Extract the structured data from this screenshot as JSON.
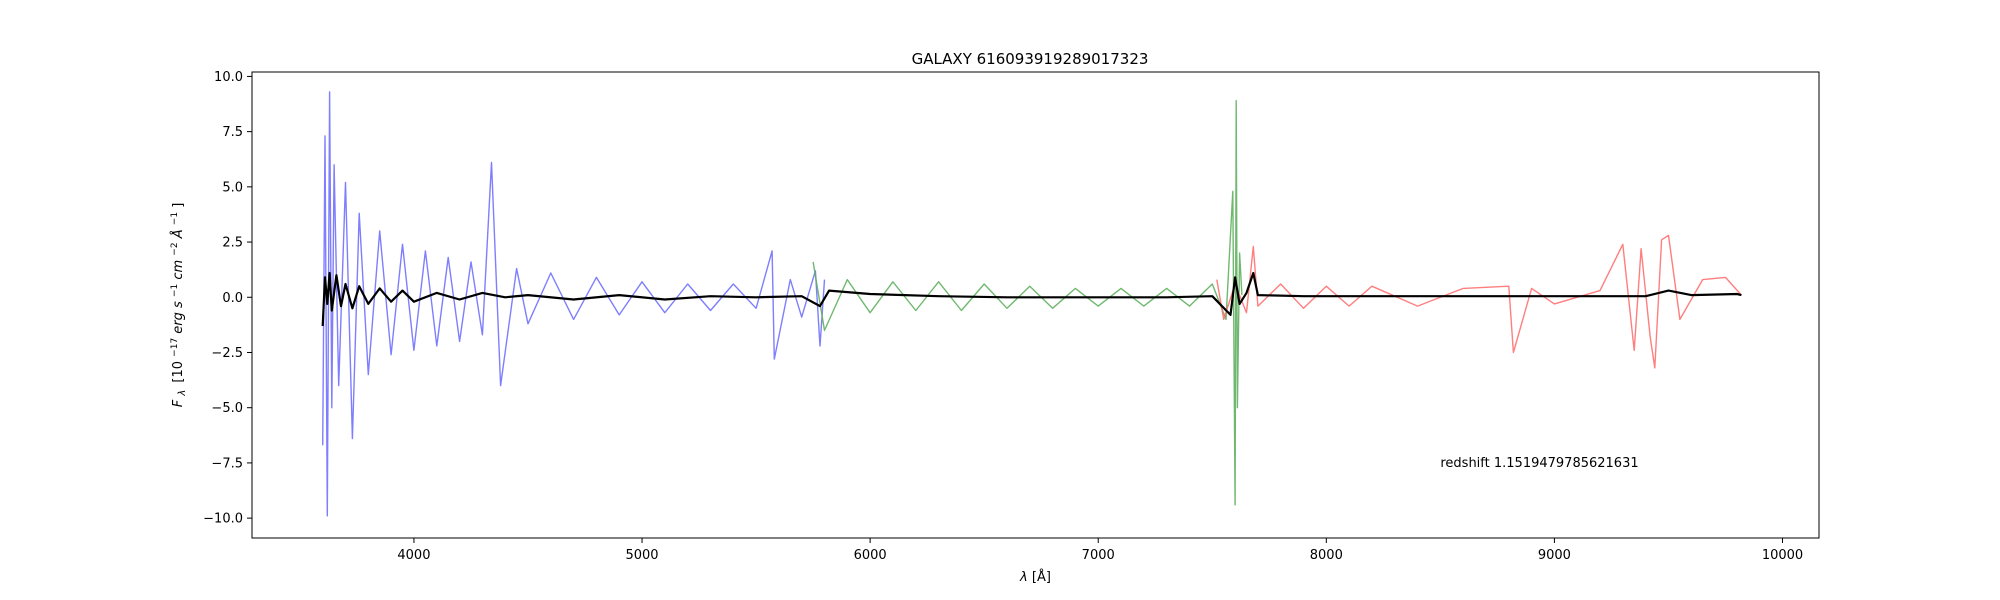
{
  "chart_data": {
    "type": "line",
    "title": "GALAXY 616093919289017323",
    "xlabel_symbol": "λ",
    "xlabel_unit": "[Å]",
    "ylabel_main": "F",
    "ylabel_sub": "λ",
    "ylabel_rest": "[10",
    "ylabel_exp1": "−17",
    "ylabel_erg": "erg s",
    "ylabel_exp2": "−1",
    "ylabel_cm": " cm",
    "ylabel_exp3": "−2",
    "ylabel_ang": " Å",
    "ylabel_exp4": "−1",
    "ylabel_close": "]",
    "xlim": [
      3290,
      10160
    ],
    "ylim": [
      -10.9,
      10.2
    ],
    "xticks": [
      4000,
      5000,
      6000,
      7000,
      8000,
      9000,
      10000
    ],
    "xtick_labels": [
      "4000",
      "5000",
      "6000",
      "7000",
      "8000",
      "9000",
      "10000"
    ],
    "yticks": [
      10.0,
      7.5,
      5.0,
      2.5,
      0.0,
      -2.5,
      -5.0,
      -7.5,
      -10.0
    ],
    "ytick_labels": [
      "10.0",
      "7.5",
      "5.0",
      "2.5",
      "0.0",
      "−2.5",
      "−5.0",
      "−7.5",
      "−10.0"
    ],
    "grid": false,
    "annotation": "redshift 1.1519479785621631",
    "series": [
      {
        "color": "#7070ff",
        "x": [
          3600,
          3610,
          3620,
          3630,
          3640,
          3650,
          3670,
          3700,
          3730,
          3760,
          3800,
          3850,
          3900,
          3950,
          4000,
          4050,
          4100,
          4150,
          4200,
          4250,
          4300,
          4340,
          4380,
          4450,
          4500,
          4600,
          4700,
          4800,
          4900,
          5000,
          5100,
          5200,
          5300,
          5400,
          5500,
          5570,
          5580,
          5650,
          5700,
          5760,
          5780,
          5800
        ],
        "y": [
          -6.7,
          7.3,
          -9.9,
          9.3,
          -5.0,
          6.0,
          -4.0,
          5.2,
          -6.4,
          3.8,
          -3.5,
          3.0,
          -2.6,
          2.4,
          -2.4,
          2.1,
          -2.2,
          1.8,
          -2.0,
          1.6,
          -1.7,
          6.1,
          -4.0,
          1.3,
          -1.2,
          1.1,
          -1.0,
          0.9,
          -0.8,
          0.7,
          -0.7,
          0.6,
          -0.6,
          0.6,
          -0.5,
          2.1,
          -2.8,
          0.8,
          -0.9,
          1.2,
          -2.2,
          0.8
        ]
      },
      {
        "color": "#60b060",
        "x": [
          5750,
          5800,
          5900,
          6000,
          6100,
          6200,
          6300,
          6400,
          6500,
          6600,
          6700,
          6800,
          6900,
          7000,
          7100,
          7200,
          7300,
          7400,
          7500,
          7560,
          7590,
          7600,
          7605,
          7610,
          7620,
          7630
        ],
        "y": [
          1.6,
          -1.5,
          0.8,
          -0.7,
          0.7,
          -0.6,
          0.7,
          -0.6,
          0.6,
          -0.5,
          0.5,
          -0.5,
          0.4,
          -0.4,
          0.4,
          -0.4,
          0.4,
          -0.4,
          0.6,
          -1.0,
          4.8,
          -9.4,
          8.9,
          -5.0,
          2.0,
          0.1
        ]
      },
      {
        "color": "#ff7070",
        "x": [
          7520,
          7550,
          7600,
          7650,
          7680,
          7700,
          7800,
          7900,
          8000,
          8100,
          8200,
          8400,
          8600,
          8800,
          8820,
          8900,
          9000,
          9200,
          9300,
          9350,
          9380,
          9420,
          9440,
          9470,
          9500,
          9550,
          9650,
          9750,
          9820
        ],
        "y": [
          0.8,
          -1.0,
          0.6,
          -0.7,
          2.3,
          -0.4,
          0.6,
          -0.5,
          0.5,
          -0.4,
          0.5,
          -0.4,
          0.4,
          0.5,
          -2.5,
          0.4,
          -0.3,
          0.3,
          2.4,
          -2.4,
          2.2,
          -1.8,
          -3.2,
          2.6,
          2.8,
          -1.0,
          0.8,
          0.9,
          0.1
        ]
      },
      {
        "color": "#000000",
        "x": [
          3600,
          3610,
          3620,
          3630,
          3640,
          3660,
          3680,
          3700,
          3730,
          3760,
          3800,
          3850,
          3900,
          3950,
          4000,
          4100,
          4200,
          4300,
          4400,
          4500,
          4700,
          4900,
          5100,
          5300,
          5500,
          5700,
          5780,
          5820,
          6000,
          6300,
          6600,
          7000,
          7300,
          7500,
          7580,
          7600,
          7620,
          7650,
          7680,
          7700,
          7900,
          8200,
          8500,
          8800,
          9100,
          9400,
          9500,
          9600,
          9800,
          9820
        ],
        "y": [
          -1.3,
          0.9,
          -0.3,
          1.1,
          -0.6,
          1.0,
          -0.4,
          0.6,
          -0.5,
          0.5,
          -0.3,
          0.4,
          -0.2,
          0.3,
          -0.2,
          0.2,
          -0.1,
          0.2,
          0.0,
          0.1,
          -0.1,
          0.1,
          -0.1,
          0.05,
          0.0,
          0.05,
          -0.4,
          0.3,
          0.15,
          0.05,
          0.0,
          0.0,
          0.0,
          0.05,
          -0.8,
          0.9,
          -0.3,
          0.2,
          1.1,
          0.1,
          0.05,
          0.05,
          0.05,
          0.05,
          0.05,
          0.05,
          0.3,
          0.1,
          0.15,
          0.1
        ]
      }
    ]
  }
}
